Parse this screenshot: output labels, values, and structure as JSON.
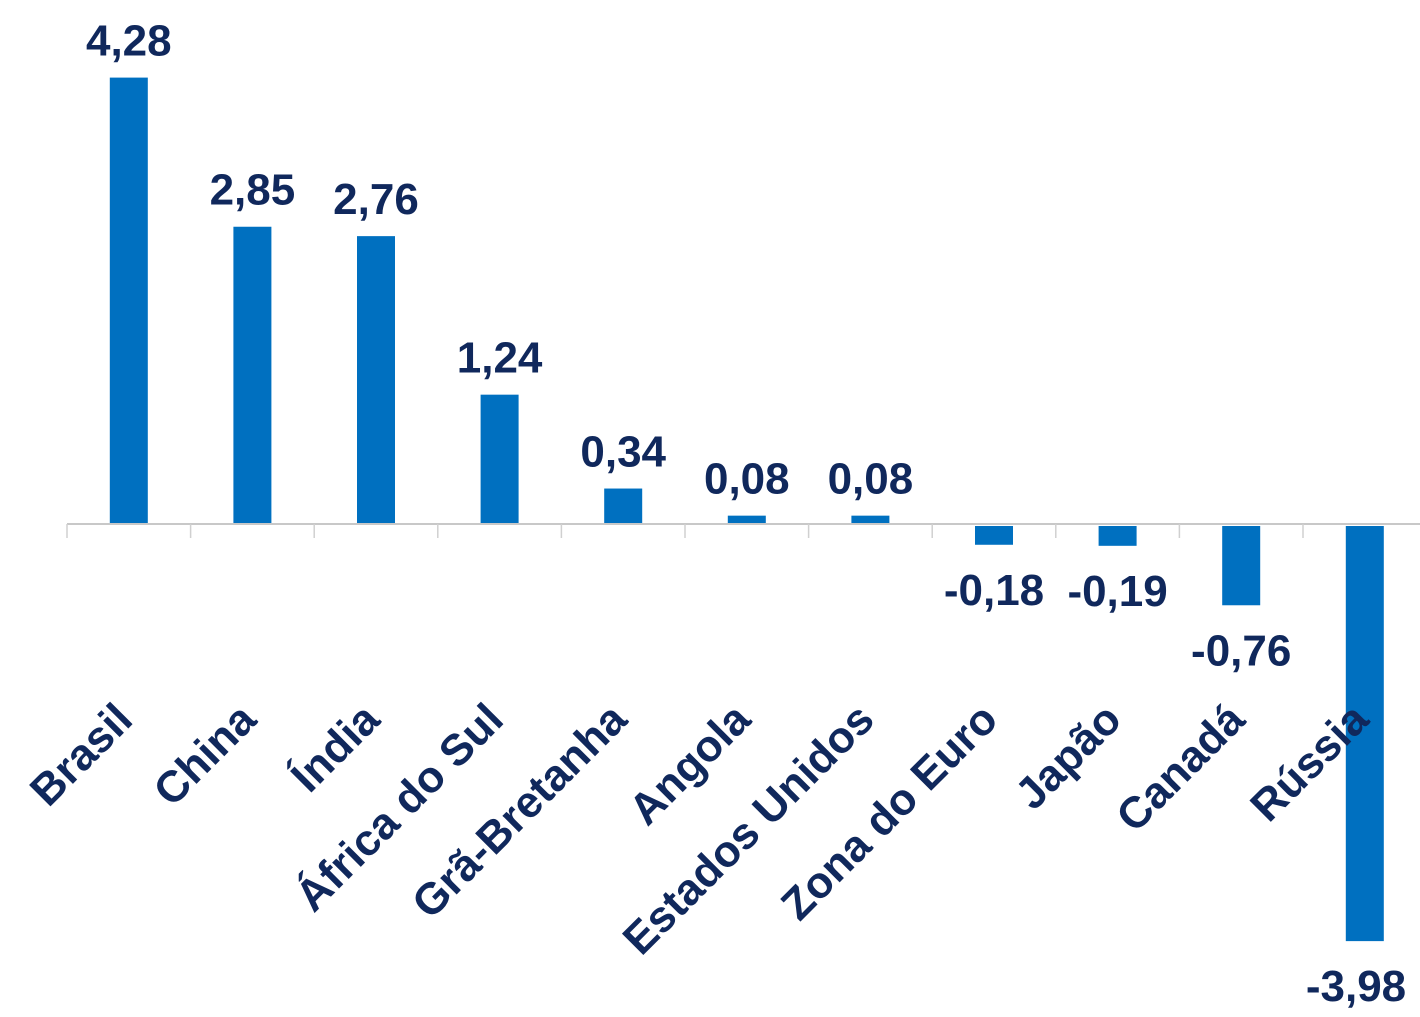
{
  "chart_data": {
    "type": "bar",
    "categories": [
      "Brasil",
      "China",
      "Índia",
      "África do Sul",
      "Grã-Bretanha",
      "Angola",
      "Estados Unidos",
      "Zona do Euro",
      "Japão",
      "Canadá",
      "Rússia"
    ],
    "values": [
      4.28,
      2.85,
      2.76,
      1.24,
      0.34,
      0.08,
      0.08,
      -0.18,
      -0.19,
      -0.76,
      -3.98
    ],
    "value_labels": [
      "4,28",
      "2,85",
      "2,76",
      "1,24",
      "0,34",
      "0,08",
      "0,08",
      "-0,18",
      "-0,19",
      "-0,76",
      "-3,98"
    ],
    "title": "",
    "xlabel": "",
    "ylabel": "",
    "ylim": [
      -4.5,
      4.5
    ],
    "grid": false,
    "bar_color": "#0070c0",
    "label_color": "#10285c"
  }
}
